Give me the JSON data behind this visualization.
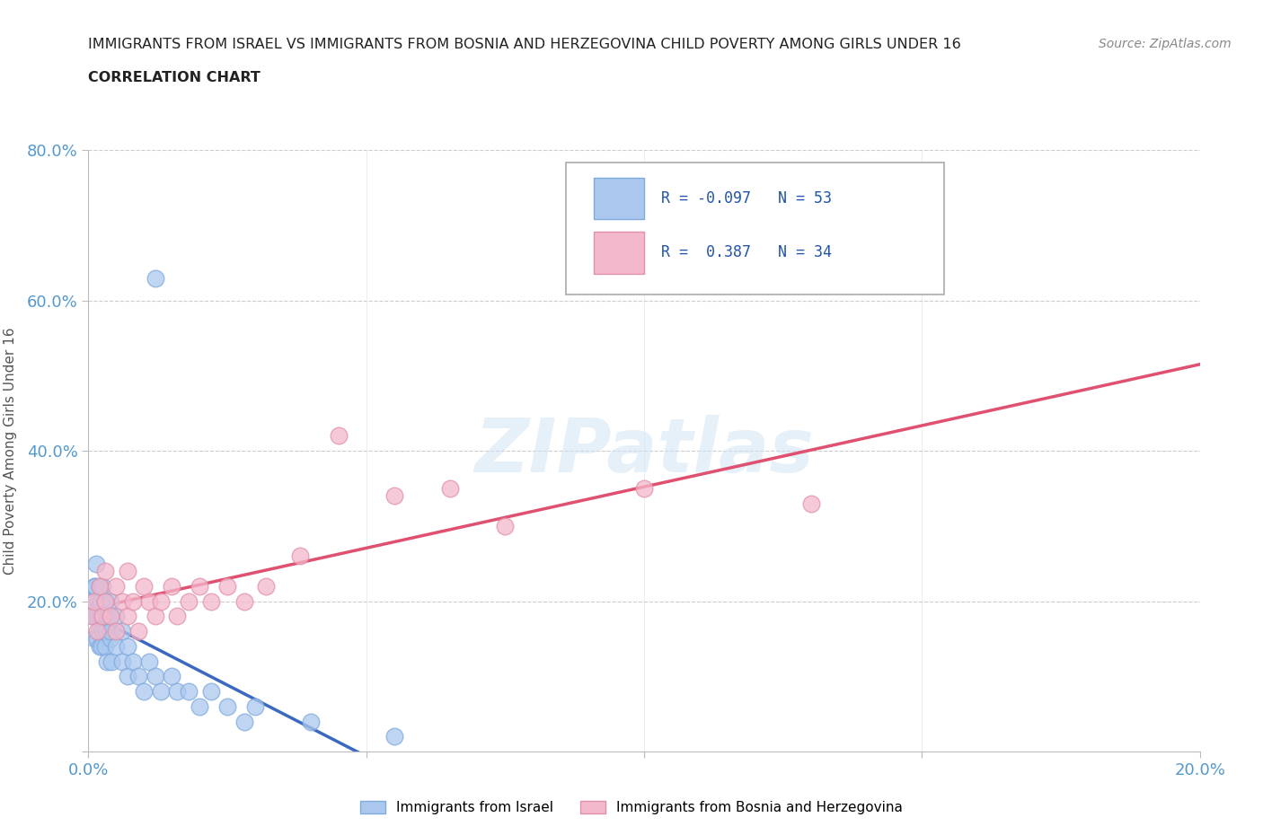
{
  "title_line1": "IMMIGRANTS FROM ISRAEL VS IMMIGRANTS FROM BOSNIA AND HERZEGOVINA CHILD POVERTY AMONG GIRLS UNDER 16",
  "title_line2": "CORRELATION CHART",
  "source": "Source: ZipAtlas.com",
  "ylabel": "Child Poverty Among Girls Under 16",
  "xlim": [
    0.0,
    0.2
  ],
  "ylim": [
    0.0,
    0.8
  ],
  "xticks": [
    0.0,
    0.05,
    0.1,
    0.15,
    0.2
  ],
  "yticks": [
    0.0,
    0.2,
    0.4,
    0.6,
    0.8
  ],
  "israel_color": "#aac8ee",
  "israel_edge_color": "#80aade",
  "bosnia_color": "#f4b8cc",
  "bosnia_edge_color": "#e090aa",
  "trendline_israel_color": "#3a6abf",
  "trendline_bosnia_color": "#e05070",
  "R_israel": -0.097,
  "N_israel": 53,
  "R_bosnia": 0.387,
  "N_bosnia": 34,
  "legend_label_israel": "Immigrants from Israel",
  "legend_label_bosnia": "Immigrants from Bosnia and Herzegovina",
  "watermark": "ZIPatlas",
  "tick_color": "#5599cc",
  "title_color": "#333333",
  "israel_x": [
    0.0005,
    0.0008,
    0.001,
    0.001,
    0.0012,
    0.0013,
    0.0014,
    0.0015,
    0.0016,
    0.0017,
    0.0018,
    0.002,
    0.002,
    0.002,
    0.0022,
    0.0023,
    0.0024,
    0.0025,
    0.0025,
    0.0026,
    0.003,
    0.003,
    0.003,
    0.0032,
    0.0033,
    0.0035,
    0.004,
    0.004,
    0.004,
    0.0042,
    0.005,
    0.005,
    0.006,
    0.006,
    0.007,
    0.007,
    0.008,
    0.009,
    0.01,
    0.011,
    0.012,
    0.013,
    0.015,
    0.016,
    0.018,
    0.02,
    0.022,
    0.025,
    0.028,
    0.03,
    0.04,
    0.055,
    0.012
  ],
  "israel_y": [
    0.2,
    0.18,
    0.22,
    0.15,
    0.18,
    0.22,
    0.25,
    0.18,
    0.15,
    0.2,
    0.16,
    0.22,
    0.18,
    0.14,
    0.2,
    0.18,
    0.14,
    0.16,
    0.22,
    0.18,
    0.2,
    0.14,
    0.18,
    0.16,
    0.12,
    0.18,
    0.15,
    0.2,
    0.16,
    0.12,
    0.14,
    0.18,
    0.16,
    0.12,
    0.14,
    0.1,
    0.12,
    0.1,
    0.08,
    0.12,
    0.1,
    0.08,
    0.1,
    0.08,
    0.08,
    0.06,
    0.08,
    0.06,
    0.04,
    0.06,
    0.04,
    0.02,
    0.63
  ],
  "bosnia_x": [
    0.0005,
    0.001,
    0.0015,
    0.002,
    0.0025,
    0.003,
    0.003,
    0.004,
    0.005,
    0.005,
    0.006,
    0.007,
    0.007,
    0.008,
    0.009,
    0.01,
    0.011,
    0.012,
    0.013,
    0.015,
    0.016,
    0.018,
    0.02,
    0.022,
    0.025,
    0.028,
    0.032,
    0.038,
    0.045,
    0.055,
    0.065,
    0.075,
    0.1,
    0.13
  ],
  "bosnia_y": [
    0.18,
    0.2,
    0.16,
    0.22,
    0.18,
    0.24,
    0.2,
    0.18,
    0.22,
    0.16,
    0.2,
    0.24,
    0.18,
    0.2,
    0.16,
    0.22,
    0.2,
    0.18,
    0.2,
    0.22,
    0.18,
    0.2,
    0.22,
    0.2,
    0.22,
    0.2,
    0.22,
    0.26,
    0.42,
    0.34,
    0.35,
    0.3,
    0.35,
    0.33
  ]
}
